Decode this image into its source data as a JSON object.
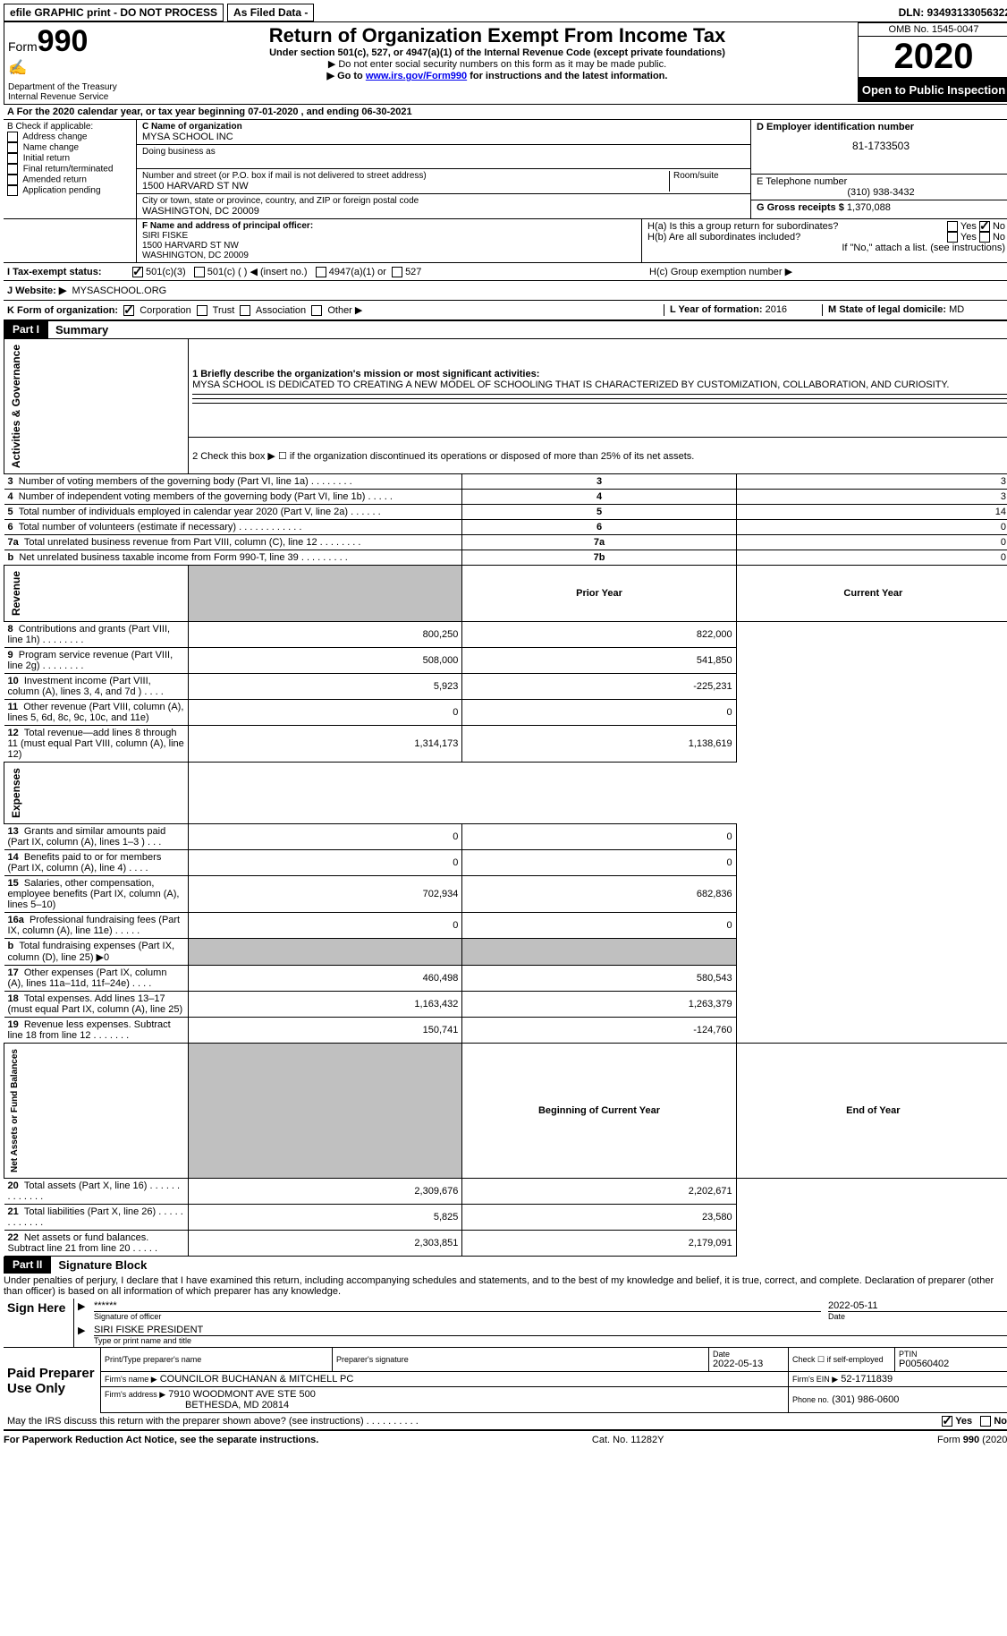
{
  "topbar": {
    "efile": "efile GRAPHIC print - DO NOT PROCESS",
    "asfiled": "As Filed Data -",
    "dln": "DLN: 93493133056322"
  },
  "header": {
    "form_label": "Form",
    "form_num": "990",
    "dept": "Department of the Treasury",
    "irs": "Internal Revenue Service",
    "title": "Return of Organization Exempt From Income Tax",
    "sub1": "Under section 501(c), 527, or 4947(a)(1) of the Internal Revenue Code (except private foundations)",
    "sub2": "▶ Do not enter social security numbers on this form as it may be made public.",
    "sub3_pre": "▶ Go to ",
    "sub3_link": "www.irs.gov/Form990",
    "sub3_post": " for instructions and the latest information.",
    "omb": "OMB No. 1545-0047",
    "year": "2020",
    "open": "Open to Public Inspection"
  },
  "lineA": "A   For the 2020 calendar year, or tax year beginning 07-01-2020   , and ending 06-30-2021",
  "boxB": {
    "label": "B Check if applicable:",
    "opts": [
      "Address change",
      "Name change",
      "Initial return",
      "Final return/terminated",
      "Amended return",
      "Application pending"
    ]
  },
  "boxC": {
    "name_label": "C Name of organization",
    "name": "MYSA SCHOOL INC",
    "dba_label": "Doing business as",
    "street_label": "Number and street (or P.O. box if mail is not delivered to street address)",
    "room_label": "Room/suite",
    "street": "1500 HARVARD ST NW",
    "city_label": "City or town, state or province, country, and ZIP or foreign postal code",
    "city": "WASHINGTON, DC  20009"
  },
  "boxD": {
    "label": "D Employer identification number",
    "val": "81-1733503"
  },
  "boxE": {
    "label": "E Telephone number",
    "val": "(310) 938-3432"
  },
  "boxG": {
    "label": "G Gross receipts $",
    "val": "1,370,088"
  },
  "boxF": {
    "label": "F  Name and address of principal officer:",
    "name": "SIRI FISKE",
    "street": "1500 HARVARD ST NW",
    "city": "WASHINGTON, DC  20009"
  },
  "boxH": {
    "a": "H(a)  Is this a group return for subordinates?",
    "b": "H(b)  Are all subordinates included?",
    "b_note": "If \"No,\" attach a list. (see instructions)",
    "c": "H(c)  Group exemption number ▶",
    "yes": "Yes",
    "no": "No"
  },
  "boxI": {
    "label": "I   Tax-exempt status:",
    "o1": "501(c)(3)",
    "o2": "501(c) (   ) ◀ (insert no.)",
    "o3": "4947(a)(1) or",
    "o4": "527"
  },
  "boxJ": {
    "label": "J   Website: ▶",
    "val": "MYSASCHOOL.ORG"
  },
  "boxK": {
    "label": "K Form of organization:",
    "opts": [
      "Corporation",
      "Trust",
      "Association",
      "Other ▶"
    ]
  },
  "boxL": {
    "label": "L Year of formation:",
    "val": "2016"
  },
  "boxM": {
    "label": "M State of legal domicile:",
    "val": "MD"
  },
  "part1": {
    "tab": "Part I",
    "title": "Summary"
  },
  "summary": {
    "l1_label": "1 Briefly describe the organization's mission or most significant activities:",
    "l1_text": "MYSA SCHOOL IS DEDICATED TO CREATING A NEW MODEL OF SCHOOLING THAT IS CHARACTERIZED BY CUSTOMIZATION, COLLABORATION, AND CURIOSITY.",
    "l2": "2   Check this box ▶ ☐ if the organization discontinued its operations or disposed of more than 25% of its net assets.",
    "rows_top": [
      {
        "n": "3",
        "t": "Number of voting members of the governing body (Part VI, line 1a)   .    .    .    .    .    .    .    .",
        "box": "3",
        "v": "3"
      },
      {
        "n": "4",
        "t": "Number of independent voting members of the governing body (Part VI, line 1b)   .    .    .    .    .",
        "box": "4",
        "v": "3"
      },
      {
        "n": "5",
        "t": "Total number of individuals employed in calendar year 2020 (Part V, line 2a)   .    .    .    .    .    .",
        "box": "5",
        "v": "14"
      },
      {
        "n": "6",
        "t": "Total number of volunteers (estimate if necessary)   .    .    .    .    .    .    .    .    .    .    .    .",
        "box": "6",
        "v": "0"
      },
      {
        "n": "7a",
        "t": "Total unrelated business revenue from Part VIII, column (C), line 12   .    .    .    .    .    .    .    .",
        "box": "7a",
        "v": "0"
      },
      {
        "n": "b",
        "t": "Net unrelated business taxable income from Form 990-T, line 39   .    .    .    .    .    .    .    .    .",
        "box": "7b",
        "v": "0"
      }
    ],
    "col_prior": "Prior Year",
    "col_current": "Current Year",
    "rows_fin": [
      {
        "sec": "Revenue",
        "n": "8",
        "t": "Contributions and grants (Part VIII, line 1h)   .    .    .    .    .    .    .    .",
        "p": "800,250",
        "c": "822,000"
      },
      {
        "sec": "Revenue",
        "n": "9",
        "t": "Program service revenue (Part VIII, line 2g)   .    .    .    .    .    .    .    .",
        "p": "508,000",
        "c": "541,850"
      },
      {
        "sec": "Revenue",
        "n": "10",
        "t": "Investment income (Part VIII, column (A), lines 3, 4, and 7d )   .    .    .    .",
        "p": "5,923",
        "c": "-225,231"
      },
      {
        "sec": "Revenue",
        "n": "11",
        "t": "Other revenue (Part VIII, column (A), lines 5, 6d, 8c, 9c, 10c, and 11e)",
        "p": "0",
        "c": "0"
      },
      {
        "sec": "Revenue",
        "n": "12",
        "t": "Total revenue—add lines 8 through 11 (must equal Part VIII, column (A), line 12)",
        "p": "1,314,173",
        "c": "1,138,619"
      },
      {
        "sec": "Expenses",
        "n": "13",
        "t": "Grants and similar amounts paid (Part IX, column (A), lines 1–3 )   .    .    .",
        "p": "0",
        "c": "0"
      },
      {
        "sec": "Expenses",
        "n": "14",
        "t": "Benefits paid to or for members (Part IX, column (A), line 4)   .    .    .    .",
        "p": "0",
        "c": "0"
      },
      {
        "sec": "Expenses",
        "n": "15",
        "t": "Salaries, other compensation, employee benefits (Part IX, column (A), lines 5–10)",
        "p": "702,934",
        "c": "682,836"
      },
      {
        "sec": "Expenses",
        "n": "16a",
        "t": "Professional fundraising fees (Part IX, column (A), line 11e)   .    .    .    .    .",
        "p": "0",
        "c": "0"
      },
      {
        "sec": "Expenses",
        "n": "b",
        "t": "Total fundraising expenses (Part IX, column (D), line 25) ▶0",
        "p": "",
        "c": "",
        "shade": true
      },
      {
        "sec": "Expenses",
        "n": "17",
        "t": "Other expenses (Part IX, column (A), lines 11a–11d, 11f–24e)   .    .    .    .",
        "p": "460,498",
        "c": "580,543"
      },
      {
        "sec": "Expenses",
        "n": "18",
        "t": "Total expenses. Add lines 13–17 (must equal Part IX, column (A), line 25)",
        "p": "1,163,432",
        "c": "1,263,379"
      },
      {
        "sec": "Expenses",
        "n": "19",
        "t": "Revenue less expenses. Subtract line 18 from line 12   .    .    .    .    .    .    .",
        "p": "150,741",
        "c": "-124,760"
      }
    ],
    "col_beg": "Beginning of Current Year",
    "col_end": "End of Year",
    "rows_net": [
      {
        "n": "20",
        "t": "Total assets (Part X, line 16)   .    .    .    .    .    .    .    .    .    .    .    .    .",
        "p": "2,309,676",
        "c": "2,202,671"
      },
      {
        "n": "21",
        "t": "Total liabilities (Part X, line 26)   .    .    .    .    .    .    .    .    .    .    .    .",
        "p": "5,825",
        "c": "23,580"
      },
      {
        "n": "22",
        "t": "Net assets or fund balances. Subtract line 21 from line 20   .    .    .    .    .",
        "p": "2,303,851",
        "c": "2,179,091"
      }
    ],
    "vlabels": {
      "ag": "Activities & Governance",
      "rev": "Revenue",
      "exp": "Expenses",
      "net": "Net Assets or Fund Balances"
    }
  },
  "part2": {
    "tab": "Part II",
    "title": "Signature Block"
  },
  "sig": {
    "penalty": "Under penalties of perjury, I declare that I have examined this return, including accompanying schedules and statements, and to the best of my knowledge and belief, it is true, correct, and complete. Declaration of preparer (other than officer) is based on all information of which preparer has any knowledge.",
    "sign_here": "Sign Here",
    "stars": "******",
    "sig_officer": "Signature of officer",
    "date": "2022-05-11",
    "date_lbl": "Date",
    "name_title": "SIRI FISKE PRESIDENT",
    "name_title_lbl": "Type or print name and title",
    "paid": "Paid Preparer Use Only",
    "col_name": "Print/Type preparer's name",
    "col_sig": "Preparer's signature",
    "col_date": "Date",
    "prep_date": "2022-05-13",
    "check_self": "Check ☐ if self-employed",
    "ptin_lbl": "PTIN",
    "ptin": "P00560402",
    "firm_name_lbl": "Firm's name      ▶",
    "firm_name": "COUNCILOR BUCHANAN & MITCHELL PC",
    "firm_ein_lbl": "Firm's EIN ▶",
    "firm_ein": "52-1711839",
    "firm_addr_lbl": "Firm's address ▶",
    "firm_addr1": "7910 WOODMONT AVE STE 500",
    "firm_addr2": "BETHESDA, MD  20814",
    "phone_lbl": "Phone no.",
    "phone": "(301) 986-0600",
    "discuss": "May the IRS discuss this return with the preparer shown above? (see instructions)   .    .    .    .    .    .    .    .    .    .",
    "yes": "Yes",
    "no": "No"
  },
  "footer": {
    "left": "For Paperwork Reduction Act Notice, see the separate instructions.",
    "mid": "Cat. No. 11282Y",
    "right_pre": "Form ",
    "right_b": "990",
    "right_post": " (2020)"
  }
}
